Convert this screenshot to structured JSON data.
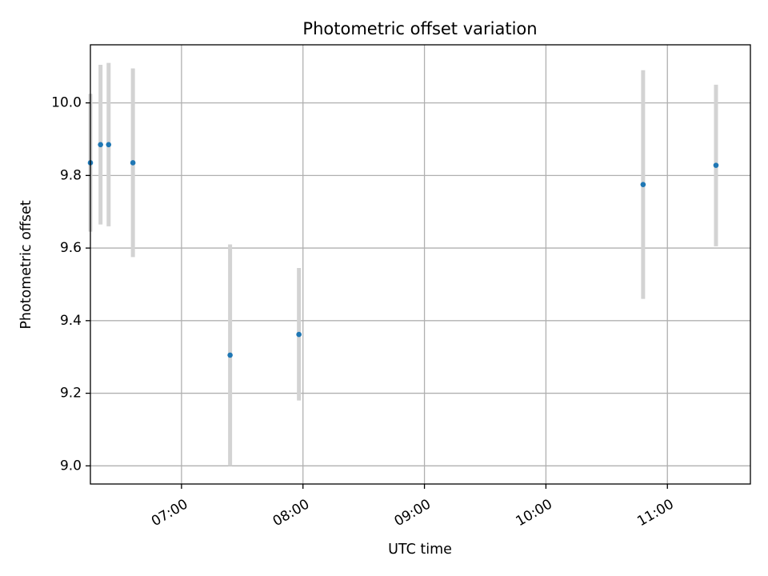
{
  "chart_data": {
    "type": "scatter",
    "title": "Photometric offset variation",
    "xlabel": "UTC time",
    "ylabel": "Photometric offset",
    "x_ticks": [
      "07:00",
      "08:00",
      "09:00",
      "10:00",
      "11:00"
    ],
    "y_ticks": [
      "9.0",
      "9.2",
      "9.4",
      "9.6",
      "9.8",
      "10.0"
    ],
    "xlim": [
      "06:15",
      "11:41"
    ],
    "ylim": [
      8.95,
      10.16
    ],
    "grid": true,
    "series": [
      {
        "marker_color": "#1f77b4",
        "errorbar_color": "#d3d3d3",
        "points": [
          {
            "x": "06:15",
            "y": 9.835,
            "yerr_low": 9.645,
            "yerr_high": 10.025
          },
          {
            "x": "06:20",
            "y": 9.885,
            "yerr_low": 9.665,
            "yerr_high": 10.105
          },
          {
            "x": "06:24",
            "y": 9.885,
            "yerr_low": 9.66,
            "yerr_high": 10.11
          },
          {
            "x": "06:36",
            "y": 9.835,
            "yerr_low": 9.575,
            "yerr_high": 10.095
          },
          {
            "x": "07:24",
            "y": 9.305,
            "yerr_low": 9.0,
            "yerr_high": 9.61
          },
          {
            "x": "07:58",
            "y": 9.362,
            "yerr_low": 9.18,
            "yerr_high": 9.545
          },
          {
            "x": "10:48",
            "y": 9.775,
            "yerr_low": 9.46,
            "yerr_high": 10.09
          },
          {
            "x": "11:24",
            "y": 9.828,
            "yerr_low": 9.605,
            "yerr_high": 10.05
          }
        ]
      }
    ]
  }
}
